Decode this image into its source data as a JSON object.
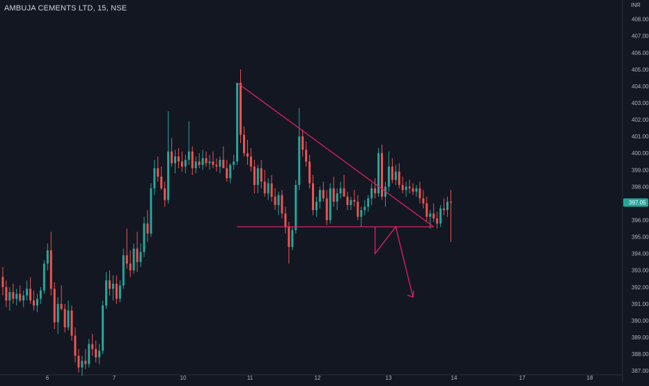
{
  "chart_data": {
    "type": "candlestick",
    "title": "AMBUJA CEMENTS LTD, 15, NSE",
    "currency": "INR",
    "interval": "15",
    "exchange": "NSE",
    "last_price": "397.05",
    "ylim": [
      386.8,
      408.4
    ],
    "y_ticks": [
      "408.00",
      "407.00",
      "406.00",
      "405.00",
      "404.00",
      "403.00",
      "402.00",
      "401.00",
      "400.00",
      "399.00",
      "398.00",
      "397.00",
      "396.00",
      "395.00",
      "394.00",
      "393.00",
      "392.00",
      "391.00",
      "390.00",
      "389.00",
      "388.00",
      "387.00"
    ],
    "x_ticks": [
      "6",
      "7",
      "10",
      "11",
      "12",
      "13",
      "14",
      "17",
      "18"
    ],
    "grid": false,
    "colors": {
      "background": "#131722",
      "up": "#26a69a",
      "down": "#ef5350",
      "text": "#b2b5be",
      "last_price_label": "#26a69a",
      "drawings": "#e91e63"
    },
    "candles": [
      [
        392.6,
        393.2,
        391.5,
        392.0
      ],
      [
        392.0,
        392.4,
        390.8,
        391.2
      ],
      [
        391.2,
        392.0,
        390.6,
        391.7
      ],
      [
        391.7,
        392.2,
        391.0,
        391.3
      ],
      [
        391.3,
        391.9,
        390.9,
        391.6
      ],
      [
        391.6,
        392.1,
        391.1,
        391.2
      ],
      [
        391.2,
        391.8,
        390.8,
        391.5
      ],
      [
        391.5,
        392.4,
        391.2,
        391.9
      ],
      [
        391.9,
        392.6,
        391.0,
        391.2
      ],
      [
        391.2,
        391.8,
        390.6,
        390.9
      ],
      [
        390.9,
        391.6,
        390.5,
        391.3
      ],
      [
        391.3,
        392.0,
        391.0,
        391.8
      ],
      [
        391.8,
        393.6,
        391.6,
        393.4
      ],
      [
        393.4,
        394.6,
        393.0,
        394.2
      ],
      [
        394.2,
        395.3,
        391.5,
        391.9
      ],
      [
        391.9,
        392.3,
        389.5,
        389.9
      ],
      [
        389.9,
        391.4,
        389.2,
        391.0
      ],
      [
        391.0,
        392.1,
        390.6,
        390.7
      ],
      [
        390.7,
        391.0,
        389.3,
        389.6
      ],
      [
        389.6,
        391.2,
        389.4,
        390.6
      ],
      [
        390.6,
        390.9,
        388.8,
        389.1
      ],
      [
        389.1,
        389.6,
        387.5,
        387.9
      ],
      [
        387.9,
        388.3,
        386.9,
        387.2
      ],
      [
        387.2,
        387.9,
        386.7,
        387.6
      ],
      [
        387.6,
        388.3,
        387.1,
        387.4
      ],
      [
        387.4,
        388.9,
        387.2,
        388.6
      ],
      [
        388.6,
        389.2,
        387.9,
        388.3
      ],
      [
        388.3,
        388.8,
        387.5,
        387.8
      ],
      [
        387.8,
        388.6,
        387.4,
        388.2
      ],
      [
        388.2,
        391.2,
        388.0,
        390.9
      ],
      [
        390.9,
        392.9,
        390.7,
        392.4
      ],
      [
        392.4,
        393.0,
        391.5,
        391.9
      ],
      [
        391.9,
        392.7,
        391.2,
        392.2
      ],
      [
        392.2,
        392.7,
        391.0,
        391.3
      ],
      [
        391.3,
        392.4,
        391.1,
        392.1
      ],
      [
        392.1,
        394.3,
        391.9,
        393.9
      ],
      [
        393.9,
        395.5,
        393.1,
        393.4
      ],
      [
        393.4,
        394.2,
        392.6,
        393.0
      ],
      [
        393.0,
        394.6,
        392.8,
        394.3
      ],
      [
        394.3,
        395.3,
        392.9,
        393.5
      ],
      [
        393.5,
        394.6,
        393.2,
        394.1
      ],
      [
        394.1,
        396.2,
        393.8,
        395.8
      ],
      [
        395.8,
        396.6,
        394.7,
        395.2
      ],
      [
        395.2,
        398.2,
        395.0,
        397.9
      ],
      [
        397.9,
        399.6,
        397.5,
        399.1
      ],
      [
        399.1,
        399.8,
        398.3,
        398.6
      ],
      [
        398.6,
        399.2,
        397.8,
        397.9
      ],
      [
        397.9,
        398.3,
        396.8,
        397.2
      ],
      [
        397.2,
        402.5,
        397.0,
        400.1
      ],
      [
        400.1,
        400.9,
        399.2,
        399.4
      ],
      [
        399.4,
        400.2,
        398.8,
        399.8
      ],
      [
        399.8,
        400.3,
        399.1,
        399.5
      ],
      [
        399.5,
        400.1,
        398.9,
        399.2
      ],
      [
        399.2,
        399.9,
        398.8,
        399.6
      ],
      [
        399.6,
        401.9,
        399.3,
        400.1
      ],
      [
        400.1,
        400.4,
        398.7,
        399.1
      ],
      [
        399.1,
        399.8,
        398.8,
        399.5
      ],
      [
        399.5,
        400.0,
        399.1,
        399.3
      ],
      [
        399.3,
        400.2,
        399.0,
        399.7
      ],
      [
        399.7,
        400.1,
        399.2,
        399.4
      ],
      [
        399.4,
        399.9,
        399.0,
        399.5
      ],
      [
        399.5,
        400.1,
        399.1,
        399.3
      ],
      [
        399.3,
        399.7,
        398.9,
        399.2
      ],
      [
        399.2,
        399.8,
        398.8,
        399.6
      ],
      [
        399.6,
        400.4,
        399.2,
        399.1
      ],
      [
        399.1,
        399.6,
        398.3,
        398.5
      ],
      [
        398.5,
        399.4,
        398.2,
        399.3
      ],
      [
        399.3,
        399.9,
        399.0,
        399.5
      ],
      [
        399.5,
        404.2,
        399.3,
        404.2
      ],
      [
        404.2,
        405.0,
        400.6,
        401.1
      ],
      [
        401.1,
        401.6,
        399.8,
        400.0
      ],
      [
        400.0,
        400.8,
        399.3,
        399.8
      ],
      [
        399.8,
        400.3,
        398.9,
        399.2
      ],
      [
        399.2,
        399.6,
        397.6,
        398.1
      ],
      [
        398.1,
        399.3,
        397.6,
        399.1
      ],
      [
        399.1,
        399.6,
        397.9,
        398.3
      ],
      [
        398.3,
        399.0,
        397.4,
        397.6
      ],
      [
        397.6,
        398.5,
        397.2,
        398.2
      ],
      [
        398.2,
        398.7,
        397.1,
        397.4
      ],
      [
        397.4,
        397.9,
        396.6,
        396.9
      ],
      [
        396.9,
        397.7,
        396.3,
        397.5
      ],
      [
        397.5,
        397.8,
        396.1,
        396.4
      ],
      [
        396.4,
        396.8,
        395.2,
        395.6
      ],
      [
        395.6,
        395.9,
        393.4,
        394.4
      ],
      [
        394.4,
        395.6,
        394.2,
        395.4
      ],
      [
        395.4,
        398.4,
        395.2,
        398.1
      ],
      [
        398.1,
        402.7,
        397.8,
        401.0
      ],
      [
        401.0,
        401.4,
        399.8,
        400.2
      ],
      [
        400.2,
        400.7,
        399.2,
        399.5
      ],
      [
        399.5,
        399.9,
        397.9,
        398.2
      ],
      [
        398.2,
        398.7,
        396.3,
        396.6
      ],
      [
        396.6,
        397.4,
        396.2,
        397.1
      ],
      [
        397.1,
        398.0,
        396.7,
        397.8
      ],
      [
        397.8,
        398.3,
        397.1,
        397.3
      ],
      [
        397.3,
        397.8,
        395.7,
        396.0
      ],
      [
        396.0,
        398.2,
        395.8,
        397.9
      ],
      [
        397.9,
        398.6,
        396.8,
        397.1
      ],
      [
        397.1,
        397.9,
        396.6,
        397.6
      ],
      [
        397.6,
        398.3,
        397.3,
        397.9
      ],
      [
        397.9,
        398.7,
        397.5,
        397.4
      ],
      [
        397.4,
        397.7,
        396.6,
        396.9
      ],
      [
        396.9,
        397.4,
        396.6,
        397.2
      ],
      [
        397.2,
        397.8,
        396.8,
        397.1
      ],
      [
        397.1,
        397.5,
        396.0,
        396.2
      ],
      [
        396.2,
        396.8,
        395.6,
        396.6
      ],
      [
        396.6,
        397.2,
        396.3,
        396.8
      ],
      [
        396.8,
        397.5,
        396.5,
        397.3
      ],
      [
        397.3,
        398.2,
        396.9,
        397.9
      ],
      [
        397.9,
        398.5,
        397.3,
        397.6
      ],
      [
        397.6,
        400.3,
        397.4,
        400.0
      ],
      [
        400.0,
        400.5,
        397.2,
        397.4
      ],
      [
        397.4,
        398.3,
        396.8,
        398.0
      ],
      [
        398.0,
        400.1,
        397.7,
        399.2
      ],
      [
        399.2,
        399.7,
        398.2,
        398.4
      ],
      [
        398.4,
        399.3,
        398.1,
        398.9
      ],
      [
        398.9,
        399.4,
        397.9,
        398.1
      ],
      [
        398.1,
        398.6,
        397.6,
        397.8
      ],
      [
        397.8,
        398.3,
        397.4,
        398.0
      ],
      [
        398.0,
        398.4,
        397.6,
        397.9
      ],
      [
        397.9,
        398.2,
        397.5,
        397.7
      ],
      [
        397.7,
        398.1,
        397.4,
        397.9
      ],
      [
        397.9,
        398.3,
        397.0,
        397.3
      ],
      [
        397.3,
        397.8,
        396.7,
        397.0
      ],
      [
        397.0,
        397.4,
        395.9,
        396.2
      ],
      [
        396.2,
        396.6,
        395.5,
        396.4
      ],
      [
        396.4,
        397.0,
        395.9,
        396.1
      ],
      [
        396.1,
        396.5,
        395.5,
        395.8
      ],
      [
        395.8,
        396.9,
        395.6,
        396.7
      ],
      [
        396.7,
        397.3,
        396.3,
        396.6
      ],
      [
        396.6,
        397.4,
        396.2,
        397.1
      ],
      [
        397.1,
        397.8,
        394.7,
        397.05
      ]
    ],
    "annotations": [
      {
        "type": "trend_line",
        "points": [
          [
            68,
            404.2
          ],
          [
            125,
            395.6
          ]
        ]
      },
      {
        "type": "horizontal_line",
        "points": [
          [
            68,
            395.6
          ],
          [
            125,
            395.6
          ]
        ]
      },
      {
        "type": "projection_path",
        "points": [
          [
            108,
            395.6
          ],
          [
            108,
            394.0
          ],
          [
            114,
            395.6
          ],
          [
            119,
            391.4
          ]
        ]
      }
    ]
  }
}
